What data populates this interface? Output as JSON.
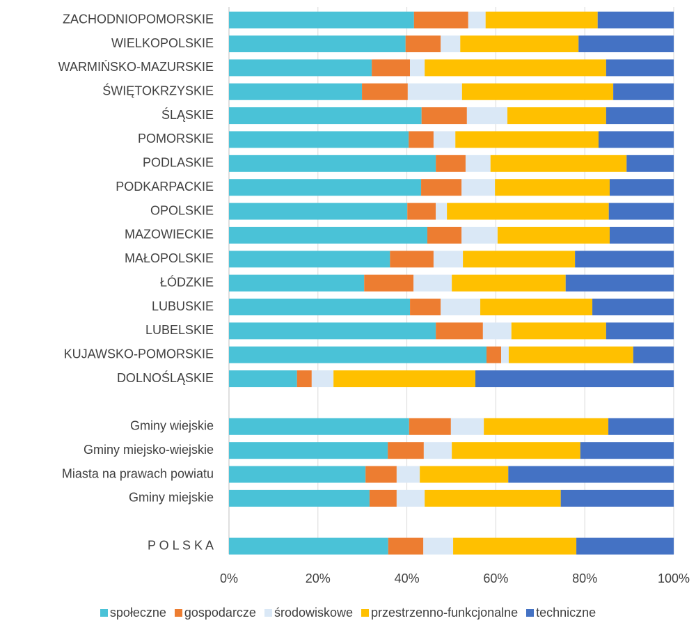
{
  "chart_data": {
    "type": "stacked-bar-horizontal",
    "categories": [
      "ZACHODNIOPOMORSKIE",
      "WIELKOPOLSKIE",
      "WARMIŃSKO-MAZURSKIE",
      "ŚWIĘTOKRZYSKIE",
      "ŚLĄSKIE",
      "POMORSKIE",
      "PODLASKIE",
      "PODKARPACKIE",
      "OPOLSKIE",
      "MAZOWIECKIE",
      "MAŁOPOLSKIE",
      "ŁÓDZKIE",
      "LUBUSKIE",
      "LUBELSKIE",
      "KUJAWSKO-POMORSKIE",
      "DOLNOŚLĄSKIE",
      null,
      "Gminy wiejskie",
      "Gminy miejsko-wiejskie",
      "Miasta na prawach powiatu",
      "Gminy miejskie",
      null,
      "P O L S K A"
    ],
    "series": [
      {
        "name": "społeczne",
        "color": "#4ac2d7",
        "values": [
          41.6,
          39.7,
          32.1,
          29.9,
          43.3,
          40.4,
          46.5,
          43.2,
          40.1,
          44.6,
          36.2,
          30.4,
          40.7,
          46.5,
          57.9,
          15.3,
          null,
          40.5,
          35.7,
          30.7,
          31.6,
          null,
          35.8
        ]
      },
      {
        "name": "gospodarcze",
        "color": "#ed7d31",
        "values": [
          12.2,
          7.9,
          8.6,
          10.3,
          10.2,
          5.6,
          6.7,
          9.1,
          6.4,
          7.7,
          9.8,
          11.1,
          6.9,
          10.6,
          3.3,
          3.3,
          null,
          9.4,
          8.1,
          7.0,
          6.1,
          null,
          7.9
        ]
      },
      {
        "name": "środowiskowe",
        "color": "#dae8f6",
        "values": [
          3.9,
          4.4,
          3.3,
          12.2,
          9.1,
          4.9,
          5.6,
          7.5,
          2.5,
          8.1,
          6.6,
          8.6,
          8.9,
          6.4,
          1.7,
          4.9,
          null,
          7.4,
          6.3,
          5.2,
          6.3,
          null,
          6.7
        ]
      },
      {
        "name": "przestrzenno-funkcjonalne",
        "color": "#ffc000",
        "values": [
          25.2,
          26.6,
          40.8,
          34.0,
          22.2,
          32.2,
          30.6,
          25.8,
          36.4,
          25.2,
          25.2,
          25.6,
          25.2,
          21.3,
          28.0,
          31.9,
          null,
          28.0,
          28.9,
          19.9,
          30.6,
          null,
          27.7
        ]
      },
      {
        "name": "techniczne",
        "color": "#4472c4",
        "values": [
          17.1,
          21.4,
          15.2,
          13.6,
          15.2,
          16.9,
          10.6,
          14.4,
          14.6,
          14.4,
          22.2,
          24.3,
          18.3,
          15.2,
          9.1,
          44.6,
          null,
          14.7,
          21.0,
          37.2,
          25.4,
          null,
          21.9
        ]
      }
    ],
    "xlim": [
      0,
      100
    ],
    "xticks": [
      {
        "value": 0,
        "label": "0%"
      },
      {
        "value": 20,
        "label": "20%"
      },
      {
        "value": 40,
        "label": "40%"
      },
      {
        "value": 60,
        "label": "60%"
      },
      {
        "value": 80,
        "label": "80%"
      },
      {
        "value": 100,
        "label": "100%"
      }
    ],
    "grid": true,
    "legend": "bottom"
  }
}
